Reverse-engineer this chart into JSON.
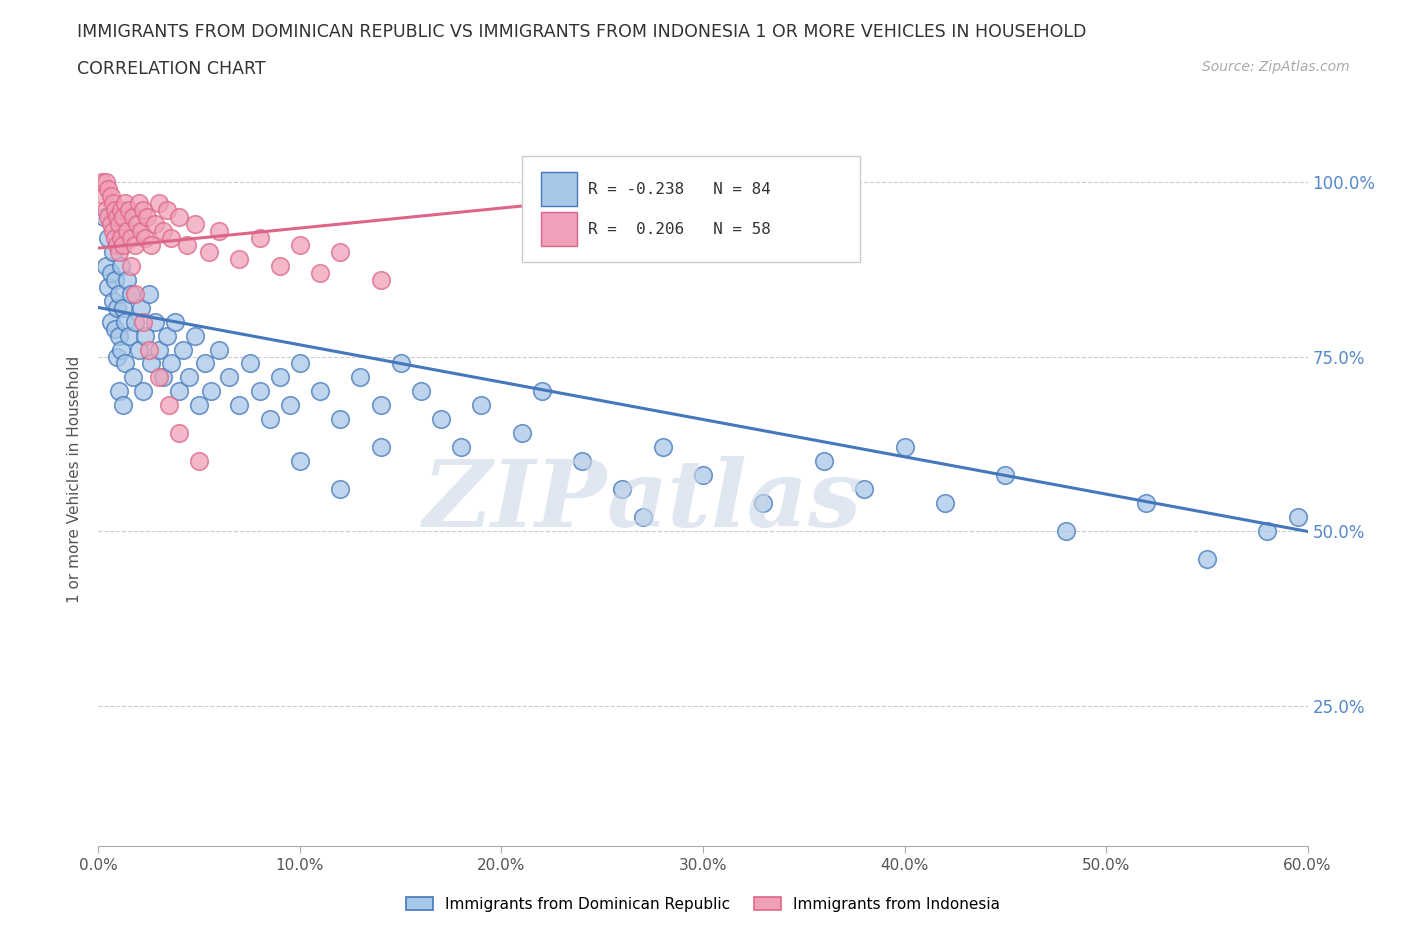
{
  "title_line1": "IMMIGRANTS FROM DOMINICAN REPUBLIC VS IMMIGRANTS FROM INDONESIA 1 OR MORE VEHICLES IN HOUSEHOLD",
  "title_line2": "CORRELATION CHART",
  "source_text": "Source: ZipAtlas.com",
  "ylabel": "1 or more Vehicles in Household",
  "xlim": [
    0.0,
    0.6
  ],
  "ylim": [
    0.05,
    1.1
  ],
  "xtick_vals": [
    0.0,
    0.1,
    0.2,
    0.3,
    0.4,
    0.5,
    0.6
  ],
  "ytick_vals": [
    0.25,
    0.5,
    0.75,
    1.0
  ],
  "ytick_labels": [
    "25.0%",
    "50.0%",
    "75.0%",
    "100.0%"
  ],
  "legend_r1_val": "R = -0.238",
  "legend_r1_n": "N = 84",
  "legend_r2_val": "R =  0.206",
  "legend_r2_n": "N = 58",
  "color_dr": "#a8c8e8",
  "color_indonesia": "#f0a0b8",
  "color_dr_line": "#4477bb",
  "color_indonesia_line": "#dd6688",
  "color_ytick_labels": "#5588cc",
  "color_title": "#333333",
  "color_source": "#aaaaaa",
  "color_grid": "#cccccc",
  "watermark_zip": "ZIP",
  "watermark_atlas": "atlas",
  "dr_trend_x0": 0.0,
  "dr_trend_y0": 0.82,
  "dr_trend_x1": 0.6,
  "dr_trend_y1": 0.5,
  "idn_trend_x0": 0.0,
  "idn_trend_y0": 0.905,
  "idn_trend_x1": 0.35,
  "idn_trend_y1": 1.005,
  "dr_points_x": [
    0.003,
    0.004,
    0.005,
    0.005,
    0.006,
    0.006,
    0.007,
    0.007,
    0.008,
    0.008,
    0.009,
    0.009,
    0.01,
    0.01,
    0.01,
    0.011,
    0.011,
    0.012,
    0.012,
    0.013,
    0.013,
    0.014,
    0.015,
    0.016,
    0.017,
    0.018,
    0.02,
    0.021,
    0.022,
    0.023,
    0.025,
    0.026,
    0.028,
    0.03,
    0.032,
    0.034,
    0.036,
    0.038,
    0.04,
    0.042,
    0.045,
    0.048,
    0.05,
    0.053,
    0.056,
    0.06,
    0.065,
    0.07,
    0.075,
    0.08,
    0.085,
    0.09,
    0.095,
    0.1,
    0.11,
    0.12,
    0.13,
    0.14,
    0.15,
    0.16,
    0.17,
    0.18,
    0.19,
    0.21,
    0.22,
    0.24,
    0.26,
    0.28,
    0.3,
    0.33,
    0.36,
    0.38,
    0.4,
    0.42,
    0.45,
    0.48,
    0.52,
    0.55,
    0.58,
    0.595,
    0.1,
    0.12,
    0.14,
    0.27
  ],
  "dr_points_y": [
    0.95,
    0.88,
    0.92,
    0.85,
    0.8,
    0.87,
    0.83,
    0.9,
    0.86,
    0.79,
    0.75,
    0.82,
    0.78,
    0.84,
    0.7,
    0.88,
    0.76,
    0.82,
    0.68,
    0.8,
    0.74,
    0.86,
    0.78,
    0.84,
    0.72,
    0.8,
    0.76,
    0.82,
    0.7,
    0.78,
    0.84,
    0.74,
    0.8,
    0.76,
    0.72,
    0.78,
    0.74,
    0.8,
    0.7,
    0.76,
    0.72,
    0.78,
    0.68,
    0.74,
    0.7,
    0.76,
    0.72,
    0.68,
    0.74,
    0.7,
    0.66,
    0.72,
    0.68,
    0.74,
    0.7,
    0.66,
    0.72,
    0.68,
    0.74,
    0.7,
    0.66,
    0.62,
    0.68,
    0.64,
    0.7,
    0.6,
    0.56,
    0.62,
    0.58,
    0.54,
    0.6,
    0.56,
    0.62,
    0.54,
    0.58,
    0.5,
    0.54,
    0.46,
    0.5,
    0.52,
    0.6,
    0.56,
    0.62,
    0.52
  ],
  "idn_points_x": [
    0.002,
    0.003,
    0.004,
    0.004,
    0.005,
    0.005,
    0.006,
    0.006,
    0.007,
    0.007,
    0.008,
    0.008,
    0.009,
    0.009,
    0.01,
    0.01,
    0.011,
    0.011,
    0.012,
    0.012,
    0.013,
    0.014,
    0.015,
    0.016,
    0.017,
    0.018,
    0.019,
    0.02,
    0.021,
    0.022,
    0.023,
    0.024,
    0.026,
    0.028,
    0.03,
    0.032,
    0.034,
    0.036,
    0.04,
    0.044,
    0.048,
    0.055,
    0.06,
    0.07,
    0.08,
    0.09,
    0.1,
    0.11,
    0.12,
    0.14,
    0.016,
    0.018,
    0.022,
    0.025,
    0.03,
    0.035,
    0.04,
    0.05
  ],
  "idn_points_y": [
    1.0,
    0.98,
    1.0,
    0.96,
    0.99,
    0.95,
    0.98,
    0.94,
    0.97,
    0.93,
    0.96,
    0.92,
    0.95,
    0.91,
    0.94,
    0.9,
    0.96,
    0.92,
    0.95,
    0.91,
    0.97,
    0.93,
    0.96,
    0.92,
    0.95,
    0.91,
    0.94,
    0.97,
    0.93,
    0.96,
    0.92,
    0.95,
    0.91,
    0.94,
    0.97,
    0.93,
    0.96,
    0.92,
    0.95,
    0.91,
    0.94,
    0.9,
    0.93,
    0.89,
    0.92,
    0.88,
    0.91,
    0.87,
    0.9,
    0.86,
    0.88,
    0.84,
    0.8,
    0.76,
    0.72,
    0.68,
    0.64,
    0.6
  ]
}
